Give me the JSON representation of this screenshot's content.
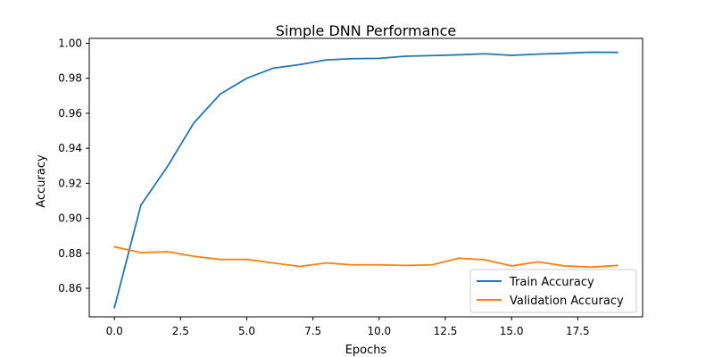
{
  "chart_data": {
    "type": "line",
    "title": "Simple DNN Performance",
    "xlabel": "Epochs",
    "ylabel": "Accuracy",
    "x": [
      0,
      1,
      2,
      3,
      4,
      5,
      6,
      7,
      8,
      9,
      10,
      11,
      12,
      13,
      14,
      15,
      16,
      17,
      18,
      19
    ],
    "xlim": [
      -0.95,
      19.95
    ],
    "ylim": [
      0.8437,
      1.0028
    ],
    "xticks": [
      0.0,
      2.5,
      5.0,
      7.5,
      10.0,
      12.5,
      15.0,
      17.5
    ],
    "xtick_labels": [
      "0.0",
      "2.5",
      "5.0",
      "7.5",
      "10.0",
      "12.5",
      "15.0",
      "17.5"
    ],
    "yticks": [
      0.86,
      0.88,
      0.9,
      0.92,
      0.94,
      0.96,
      0.98,
      1.0
    ],
    "ytick_labels": [
      "0.86",
      "0.88",
      "0.90",
      "0.92",
      "0.94",
      "0.96",
      "0.98",
      "1.00"
    ],
    "grid": false,
    "legend_position": "lower-right",
    "series": [
      {
        "name": "Train Accuracy",
        "color": "#1f77b4",
        "values": [
          0.849,
          0.9075,
          0.9295,
          0.9545,
          0.971,
          0.98,
          0.9858,
          0.9878,
          0.9905,
          0.9912,
          0.9914,
          0.9926,
          0.993,
          0.9934,
          0.994,
          0.9931,
          0.9938,
          0.9943,
          0.9949,
          0.9948
        ]
      },
      {
        "name": "Validation Accuracy",
        "color": "#ff7f0e",
        "values": [
          0.8837,
          0.8804,
          0.8809,
          0.8783,
          0.8765,
          0.8765,
          0.8745,
          0.8725,
          0.8745,
          0.8734,
          0.8734,
          0.8731,
          0.8734,
          0.8772,
          0.8763,
          0.8728,
          0.8751,
          0.8728,
          0.8721,
          0.8731
        ]
      }
    ]
  }
}
